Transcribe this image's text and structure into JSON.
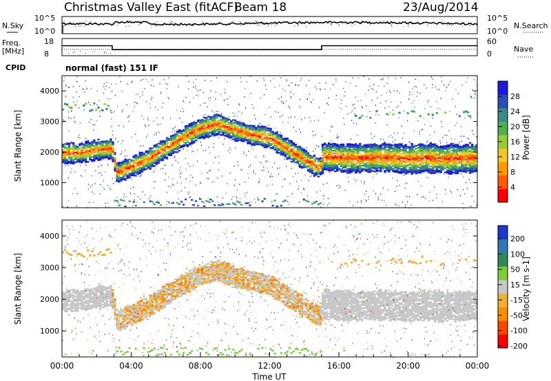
{
  "header": {
    "title": "Christmas Valley East (fitACF)",
    "beam": "Beam 18",
    "date": "23/Aug/2014"
  },
  "chart_data": [
    {
      "type": "line",
      "name": "noise panel",
      "left_label": "N.Sky",
      "left_ticks": [
        "10^5",
        "10^0"
      ],
      "right_label": "N.Search",
      "right_ticks": [
        "10^5",
        "10^0"
      ],
      "x_range_hours": [
        0,
        24
      ]
    },
    {
      "type": "line",
      "name": "frequency panel",
      "left_label_lines": [
        "Freq.",
        "[MHz]"
      ],
      "left_ticks": [
        18,
        8
      ],
      "right_label": "Nave",
      "right_ticks": [
        60,
        0
      ],
      "frequency_steps": [
        {
          "start_hour": 0,
          "end_hour": 2.9,
          "mhz": 14.2
        },
        {
          "start_hour": 2.9,
          "end_hour": 15.0,
          "mhz": 10.8
        },
        {
          "start_hour": 15.0,
          "end_hour": 24,
          "mhz": 14.2
        }
      ],
      "nave_approx": 22
    },
    {
      "type": "table",
      "name": "cpid",
      "label": "CPID",
      "value": "normal (fast) 151 IF"
    },
    {
      "type": "heatmap",
      "name": "power panel",
      "ylabel": "Slant Range [km]",
      "y_ticks": [
        1000,
        2000,
        3000,
        4000
      ],
      "ylim": [
        180,
        4500
      ],
      "colorbar": {
        "label": "Power [dB]",
        "ticks": [
          4,
          8,
          12,
          16,
          20,
          24,
          28
        ],
        "colors": [
          "#1a1adc",
          "#2a4fb8",
          "#3a8a8a",
          "#4fb04f",
          "#9acd32",
          "#f0c828",
          "#ff9a00",
          "#ff5a00",
          "#ff0000"
        ]
      },
      "main_echo_band_km": [
        [
          0,
          1950
        ],
        [
          1,
          1950
        ],
        [
          2,
          2050
        ],
        [
          2.9,
          2100
        ],
        [
          3.2,
          1300
        ],
        [
          4,
          1500
        ],
        [
          5,
          1750
        ],
        [
          6,
          2100
        ],
        [
          7,
          2450
        ],
        [
          8,
          2750
        ],
        [
          9,
          2900
        ],
        [
          10,
          2700
        ],
        [
          11,
          2550
        ],
        [
          12,
          2450
        ],
        [
          13,
          2100
        ],
        [
          14,
          1750
        ],
        [
          14.9,
          1450
        ],
        [
          15.1,
          1850
        ],
        [
          16,
          1800
        ],
        [
          17,
          1780
        ],
        [
          18,
          1800
        ],
        [
          19,
          1800
        ],
        [
          20,
          1750
        ],
        [
          21,
          1800
        ],
        [
          22,
          1750
        ],
        [
          23,
          1780
        ],
        [
          24,
          1800
        ]
      ]
    },
    {
      "type": "heatmap",
      "name": "velocity panel",
      "ylabel": "Slant Range [km]",
      "y_ticks": [
        1000,
        2000,
        3000,
        4000
      ],
      "ylim": [
        180,
        4500
      ],
      "colorbar": {
        "label": "Velocity [m s-1]",
        "ticks": [
          200,
          100,
          50,
          15,
          -15,
          -50,
          -100,
          -200
        ],
        "colors": [
          "#1a3cc8",
          "#2f78b4",
          "#2e8b57",
          "#7ccd3a",
          "#c8c8c8",
          "#f0b030",
          "#ff8c00",
          "#ff4500",
          "#ff0000"
        ]
      },
      "x_ticks": [
        "00:00",
        "04:00",
        "08:00",
        "12:00",
        "16:00",
        "20:00",
        "00:00"
      ],
      "xlabel": "Time UT"
    }
  ]
}
